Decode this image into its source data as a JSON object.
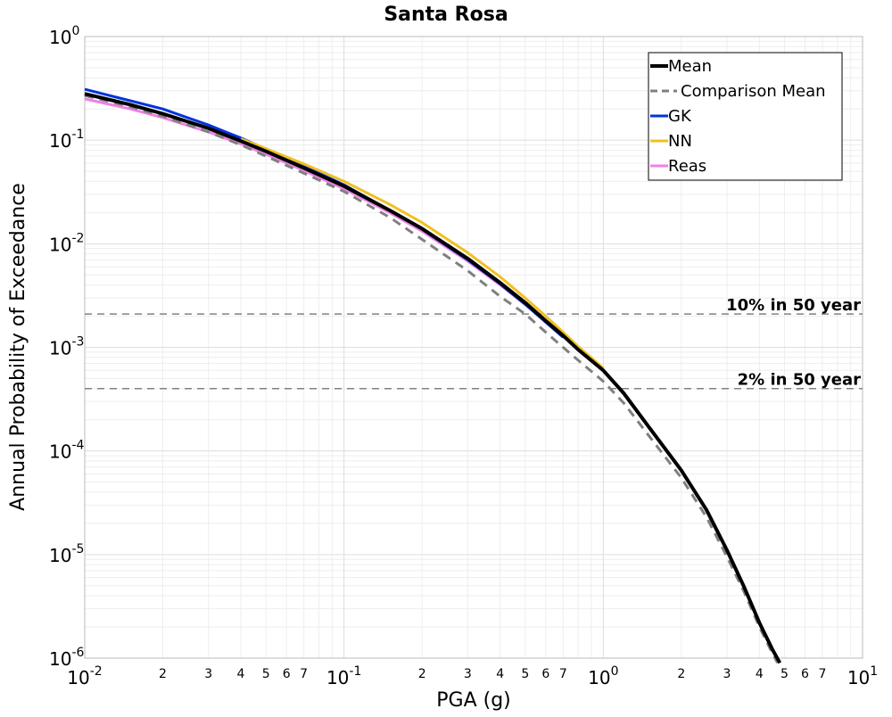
{
  "chart_data": {
    "type": "line",
    "title": "Santa Rosa",
    "xlabel": "PGA (g)",
    "ylabel": "Annual Probability of Exceedance",
    "x_scale": "log",
    "y_scale": "log",
    "xlim": [
      0.01,
      10
    ],
    "ylim": [
      1e-06,
      1
    ],
    "grid": true,
    "legend_position": "top-right",
    "x_major_ticks": [
      {
        "base": "10",
        "exp": "-2"
      },
      {
        "base": "10",
        "exp": "-1"
      },
      {
        "base": "10",
        "exp": "0"
      },
      {
        "base": "10",
        "exp": "1"
      }
    ],
    "x_minor_tick_labels": [
      "2",
      "3",
      "4",
      "5",
      "6",
      "7"
    ],
    "y_major_ticks": [
      {
        "base": "10",
        "exp": "0"
      },
      {
        "base": "10",
        "exp": "-1"
      },
      {
        "base": "10",
        "exp": "-2"
      },
      {
        "base": "10",
        "exp": "-3"
      },
      {
        "base": "10",
        "exp": "-4"
      },
      {
        "base": "10",
        "exp": "-5"
      },
      {
        "base": "10",
        "exp": "-6"
      }
    ],
    "reference_lines": [
      {
        "label": "10% in 50 year",
        "y": 0.0021,
        "color": "#808080"
      },
      {
        "label": "2% in 50 year",
        "y": 0.0004,
        "color": "#808080"
      }
    ],
    "series": [
      {
        "name": "Mean",
        "color": "#000000",
        "dash": "",
        "width": 4,
        "x": [
          0.01,
          0.015,
          0.02,
          0.03,
          0.04,
          0.05,
          0.07,
          0.1,
          0.15,
          0.2,
          0.3,
          0.4,
          0.5,
          0.6,
          0.7,
          0.8,
          1.0,
          1.2,
          1.5,
          2.0,
          2.5,
          3.0,
          3.5,
          4.0,
          4.5,
          4.8
        ],
        "y": [
          0.28,
          0.22,
          0.18,
          0.13,
          0.098,
          0.078,
          0.054,
          0.036,
          0.021,
          0.014,
          0.0072,
          0.0042,
          0.0027,
          0.0018,
          0.0013,
          0.00095,
          0.0006,
          0.00036,
          0.00017,
          6.5e-05,
          2.7e-05,
          1.1e-05,
          4.8e-06,
          2.2e-06,
          1.2e-06,
          9e-07
        ]
      },
      {
        "name": "Comparison Mean",
        "color": "#808080",
        "dash": "10,7",
        "width": 3,
        "x": [
          0.01,
          0.015,
          0.02,
          0.03,
          0.04,
          0.05,
          0.07,
          0.1,
          0.15,
          0.2,
          0.3,
          0.4,
          0.5,
          0.6,
          0.7,
          0.8,
          1.0,
          1.2,
          1.5,
          2.0,
          2.5,
          3.0,
          3.5,
          4.0,
          4.5,
          4.7
        ],
        "y": [
          0.27,
          0.21,
          0.17,
          0.12,
          0.09,
          0.07,
          0.048,
          0.032,
          0.018,
          0.011,
          0.0055,
          0.0031,
          0.0021,
          0.0014,
          0.001,
          0.00075,
          0.00047,
          0.00029,
          0.00014,
          5.5e-05,
          2.3e-05,
          9.5e-06,
          4.3e-06,
          2e-06,
          1.1e-06,
          9e-07
        ]
      },
      {
        "name": "GK",
        "color": "#0033dd",
        "dash": "",
        "width": 3,
        "x": [
          0.01,
          0.015,
          0.02,
          0.03,
          0.04,
          0.05,
          0.07,
          0.1,
          0.15,
          0.2,
          0.3,
          0.4,
          0.5,
          0.6,
          0.7
        ],
        "y": [
          0.31,
          0.24,
          0.2,
          0.14,
          0.105,
          0.082,
          0.056,
          0.037,
          0.021,
          0.0138,
          0.007,
          0.0041,
          0.0026,
          0.00175,
          0.00125
        ]
      },
      {
        "name": "NN",
        "color": "#f0c020",
        "dash": "",
        "width": 3,
        "x": [
          0.04,
          0.05,
          0.07,
          0.1,
          0.15,
          0.2,
          0.3,
          0.4,
          0.5,
          0.6,
          0.7,
          0.8,
          1.0
        ],
        "y": [
          0.103,
          0.083,
          0.059,
          0.04,
          0.024,
          0.016,
          0.0082,
          0.0048,
          0.003,
          0.002,
          0.0014,
          0.00102,
          0.00063
        ]
      },
      {
        "name": "Reas",
        "color": "#f080e8",
        "dash": "",
        "width": 3,
        "x": [
          0.01,
          0.015,
          0.02,
          0.03,
          0.04,
          0.05,
          0.07,
          0.1,
          0.15,
          0.2,
          0.3,
          0.4,
          0.5,
          0.6
        ],
        "y": [
          0.25,
          0.2,
          0.165,
          0.12,
          0.092,
          0.073,
          0.051,
          0.034,
          0.02,
          0.0132,
          0.0068,
          0.004,
          0.0026,
          0.0018
        ]
      }
    ]
  }
}
